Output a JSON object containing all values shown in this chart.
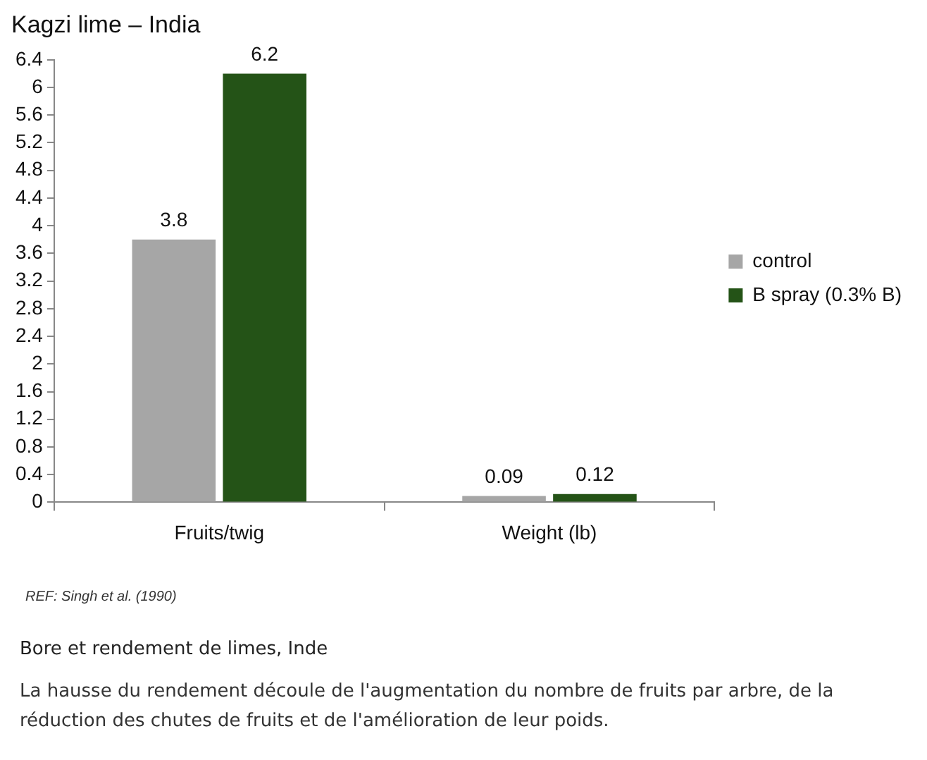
{
  "chart_data": {
    "type": "bar",
    "title": "Kagzi lime – India",
    "categories": [
      "Fruits/twig",
      "Weight (lb)"
    ],
    "series": [
      {
        "name": "control",
        "color": "#a6a6a6",
        "values": [
          3.8,
          0.09
        ]
      },
      {
        "name": "B spray (0.3% B)",
        "color": "#245317",
        "values": [
          6.2,
          0.12
        ]
      }
    ],
    "ylim": [
      0,
      6.4
    ],
    "yticks": [
      0,
      0.4,
      0.8,
      1.2,
      1.6,
      2,
      2.4,
      2.8,
      3.2,
      3.6,
      4,
      4.4,
      4.8,
      5.2,
      5.6,
      6,
      6.4
    ],
    "grid": false,
    "legend": "right",
    "data_labels": true,
    "annotations": [
      "REF: Singh et al. (1990)",
      "Bore et rendement de limes, Inde",
      "La hausse du rendement découle de l'augmentation du nombre de fruits par arbre, de la réduction des chutes de fruits et de l'amélioration de leur poids."
    ]
  }
}
